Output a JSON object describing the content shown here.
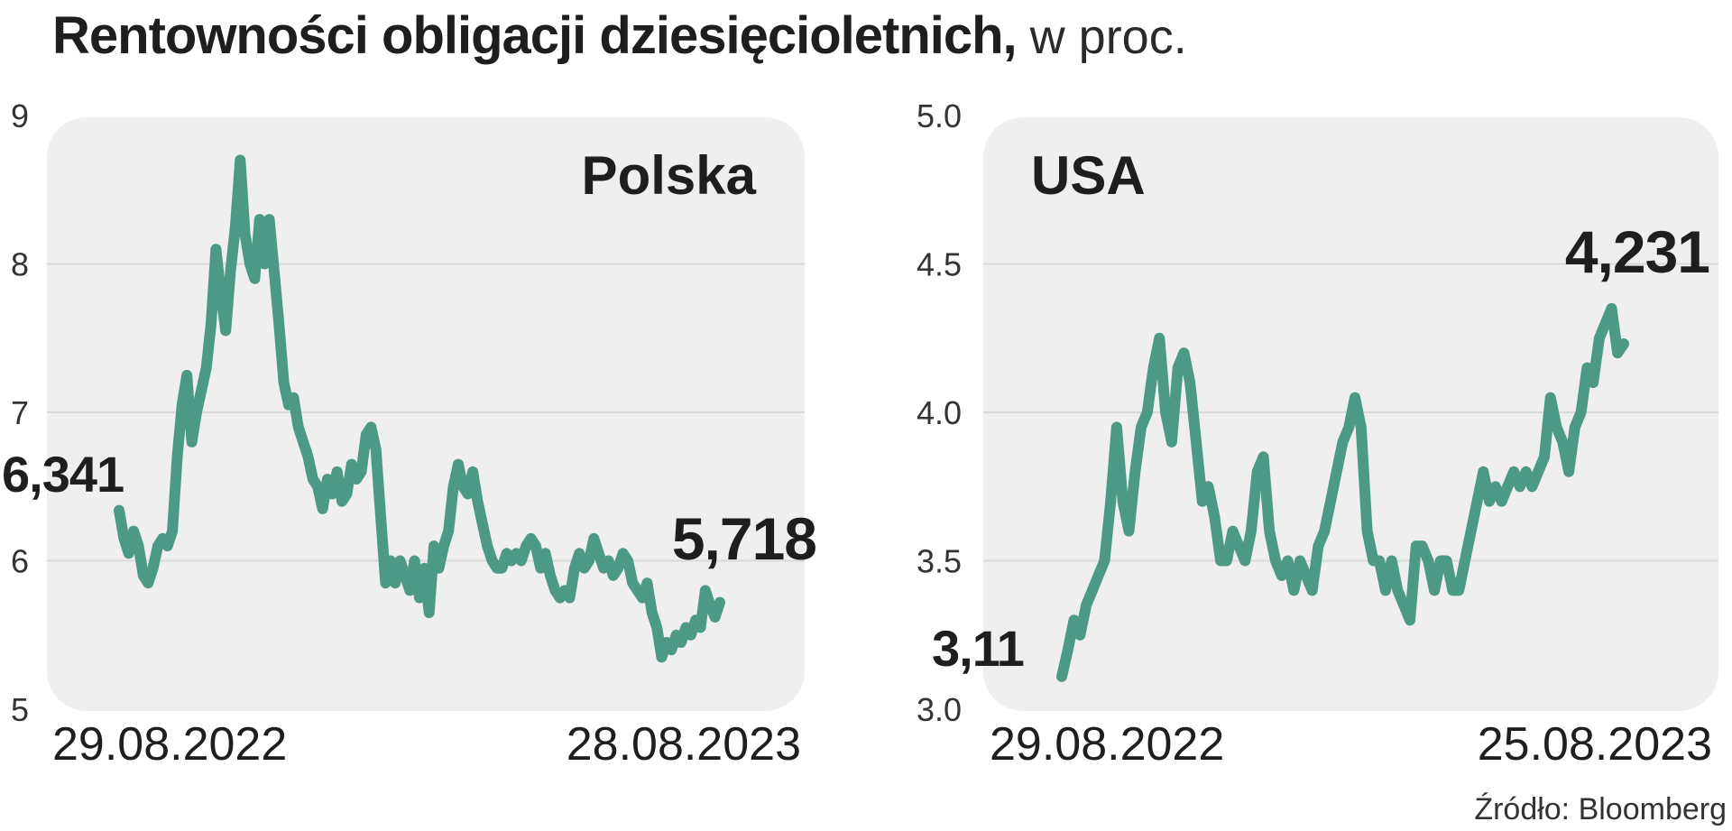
{
  "title": {
    "main": "Rentowności obligacji dziesięcioletnich,",
    "sub": " w proc."
  },
  "source": "Źródło: Bloomberg",
  "colors": {
    "line": "#4c9a86",
    "panel": "#efefef",
    "grid": "#d8d8d8"
  },
  "chart_data": [
    {
      "type": "line",
      "title": "Polska",
      "ylim": [
        5,
        9
      ],
      "yticks": [
        "5",
        "6",
        "7",
        "8",
        "9"
      ],
      "x_start_label": "29.08.2022",
      "x_end_label": "28.08.2023",
      "start_value_label": "6,341",
      "end_value_label": "5,718",
      "grid": true,
      "values": [
        6.34,
        6.15,
        6.05,
        6.2,
        6.1,
        5.9,
        5.85,
        5.95,
        6.1,
        6.15,
        6.1,
        6.2,
        6.7,
        7.05,
        7.25,
        6.8,
        7.0,
        7.15,
        7.3,
        7.6,
        8.1,
        7.8,
        7.55,
        7.95,
        8.25,
        8.7,
        8.2,
        8.0,
        7.9,
        8.3,
        8.0,
        8.3,
        7.95,
        7.6,
        7.2,
        7.05,
        7.1,
        6.9,
        6.8,
        6.7,
        6.55,
        6.5,
        6.35,
        6.55,
        6.45,
        6.6,
        6.4,
        6.45,
        6.65,
        6.55,
        6.6,
        6.85,
        6.9,
        6.75,
        6.3,
        5.85,
        6.0,
        5.85,
        6.0,
        5.9,
        5.8,
        6.0,
        5.75,
        5.95,
        5.65,
        6.1,
        5.95,
        6.1,
        6.2,
        6.5,
        6.65,
        6.5,
        6.45,
        6.6,
        6.4,
        6.25,
        6.1,
        6.0,
        5.95,
        5.95,
        6.05,
        6.0,
        6.05,
        6.0,
        6.1,
        6.15,
        6.1,
        5.95,
        6.05,
        5.9,
        5.8,
        5.75,
        5.8,
        5.75,
        5.95,
        6.05,
        5.95,
        6.0,
        6.15,
        6.05,
        5.95,
        6.0,
        5.9,
        5.95,
        6.05,
        6.0,
        5.85,
        5.8,
        5.75,
        5.85,
        5.65,
        5.55,
        5.35,
        5.45,
        5.4,
        5.5,
        5.45,
        5.55,
        5.5,
        5.6,
        5.55,
        5.8,
        5.7,
        5.62,
        5.72
      ]
    },
    {
      "type": "line",
      "title": "USA",
      "ylim": [
        3.0,
        5.0
      ],
      "yticks": [
        "3.0",
        "3.5",
        "4.0",
        "4.5",
        "5.0"
      ],
      "x_start_label": "29.08.2022",
      "x_end_label": "25.08.2023",
      "start_value_label": "3,11",
      "end_value_label": "4,231",
      "grid": true,
      "values": [
        3.11,
        3.2,
        3.3,
        3.25,
        3.35,
        3.4,
        3.45,
        3.5,
        3.7,
        3.95,
        3.7,
        3.6,
        3.8,
        3.95,
        4.0,
        4.15,
        4.25,
        4.0,
        3.9,
        4.15,
        4.2,
        4.1,
        3.9,
        3.7,
        3.75,
        3.65,
        3.5,
        3.5,
        3.6,
        3.55,
        3.5,
        3.6,
        3.8,
        3.85,
        3.6,
        3.5,
        3.45,
        3.5,
        3.4,
        3.5,
        3.45,
        3.4,
        3.55,
        3.6,
        3.7,
        3.8,
        3.9,
        3.95,
        4.05,
        3.95,
        3.6,
        3.5,
        3.5,
        3.4,
        3.5,
        3.4,
        3.35,
        3.3,
        3.55,
        3.55,
        3.5,
        3.4,
        3.5,
        3.5,
        3.4,
        3.4,
        3.5,
        3.6,
        3.7,
        3.8,
        3.7,
        3.75,
        3.7,
        3.75,
        3.8,
        3.75,
        3.8,
        3.75,
        3.8,
        3.85,
        4.05,
        3.95,
        3.9,
        3.8,
        3.95,
        4.0,
        4.15,
        4.1,
        4.25,
        4.3,
        4.35,
        4.2,
        4.231
      ]
    }
  ]
}
